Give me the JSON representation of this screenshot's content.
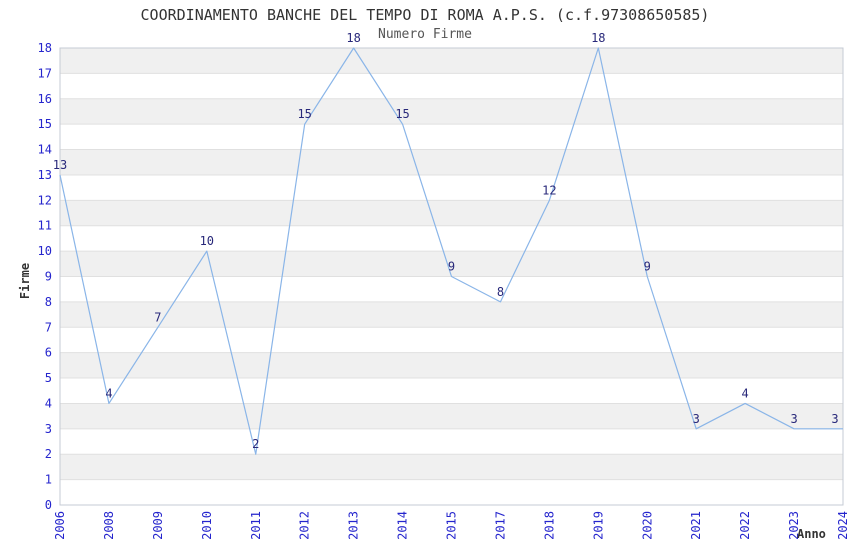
{
  "page": {
    "title": "COORDINAMENTO BANCHE DEL TEMPO DI ROMA A.P.S. (c.f.97308650585)",
    "subtitle": "Numero Firme"
  },
  "chart_data": {
    "type": "line",
    "title": "COORDINAMENTO BANCHE DEL TEMPO DI ROMA A.P.S. (c.f.97308650585)",
    "subtitle": "Numero Firme",
    "xlabel": "Anno",
    "ylabel": "Firme",
    "categories": [
      "2006",
      "2008",
      "2009",
      "2010",
      "2011",
      "2012",
      "2013",
      "2014",
      "2015",
      "2017",
      "2018",
      "2019",
      "2020",
      "2021",
      "2022",
      "2023",
      "2024"
    ],
    "values": [
      13,
      4,
      7,
      10,
      2,
      15,
      18,
      15,
      9,
      8,
      12,
      18,
      9,
      3,
      4,
      3,
      3
    ],
    "point_labels": [
      "13",
      "4",
      "7",
      "10",
      "2",
      "15",
      "18",
      "15",
      "9",
      "8",
      "12",
      "18",
      "9",
      "3",
      "4",
      "3",
      "3"
    ],
    "ylim": [
      0,
      18
    ],
    "ytick_step": 1,
    "grid": "horizontal-bands",
    "legend_position": "none",
    "colors": {
      "line": "#8ab5e8",
      "tick_label": "#2525cd",
      "point_label": "#28287a",
      "band_fill": "#f0f0f0",
      "gridline": "#e0e0e0",
      "plot_border": "#c6cbd4",
      "title": "#333333",
      "subtitle": "#555555",
      "axis_title": "#333333",
      "background": "#ffffff"
    }
  }
}
